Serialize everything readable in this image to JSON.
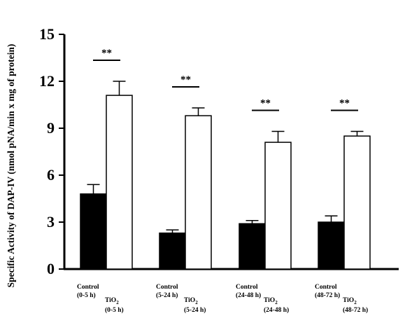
{
  "chart_data": {
    "type": "bar",
    "title": "",
    "xlabel": "",
    "ylabel": "Specific Activity of DAP-IV (nmol pNA/min x mg of protein)",
    "ylim": [
      0,
      15
    ],
    "yticks": [
      0,
      3,
      6,
      9,
      12,
      15
    ],
    "grid": false,
    "legend": "none",
    "groups": [
      {
        "control_label": [
          "Control",
          "(0-5 h)"
        ],
        "tio2_label": [
          "TiO",
          "2",
          "(0-5 h)"
        ],
        "significance": "**"
      },
      {
        "control_label": [
          "Control",
          "(5-24 h)"
        ],
        "tio2_label": [
          "TiO",
          "2",
          "(5-24 h)"
        ],
        "significance": "**"
      },
      {
        "control_label": [
          "Control",
          "(24-48 h)"
        ],
        "tio2_label": [
          "TiO",
          "2",
          "(24-48 h)"
        ],
        "significance": "**"
      },
      {
        "control_label": [
          "Control",
          "(48-72 h)"
        ],
        "tio2_label": [
          "TiO",
          "2",
          "(48-72 h)"
        ],
        "significance": "**"
      }
    ],
    "series": [
      {
        "key": "control",
        "color": "#000000",
        "values": [
          4.8,
          2.3,
          2.9,
          3.0
        ],
        "errors": [
          0.6,
          0.2,
          0.2,
          0.4
        ]
      },
      {
        "key": "tio2",
        "color": "#ffffff",
        "values": [
          11.1,
          9.8,
          8.1,
          8.5
        ],
        "errors": [
          0.9,
          0.5,
          0.7,
          0.3
        ]
      }
    ]
  }
}
